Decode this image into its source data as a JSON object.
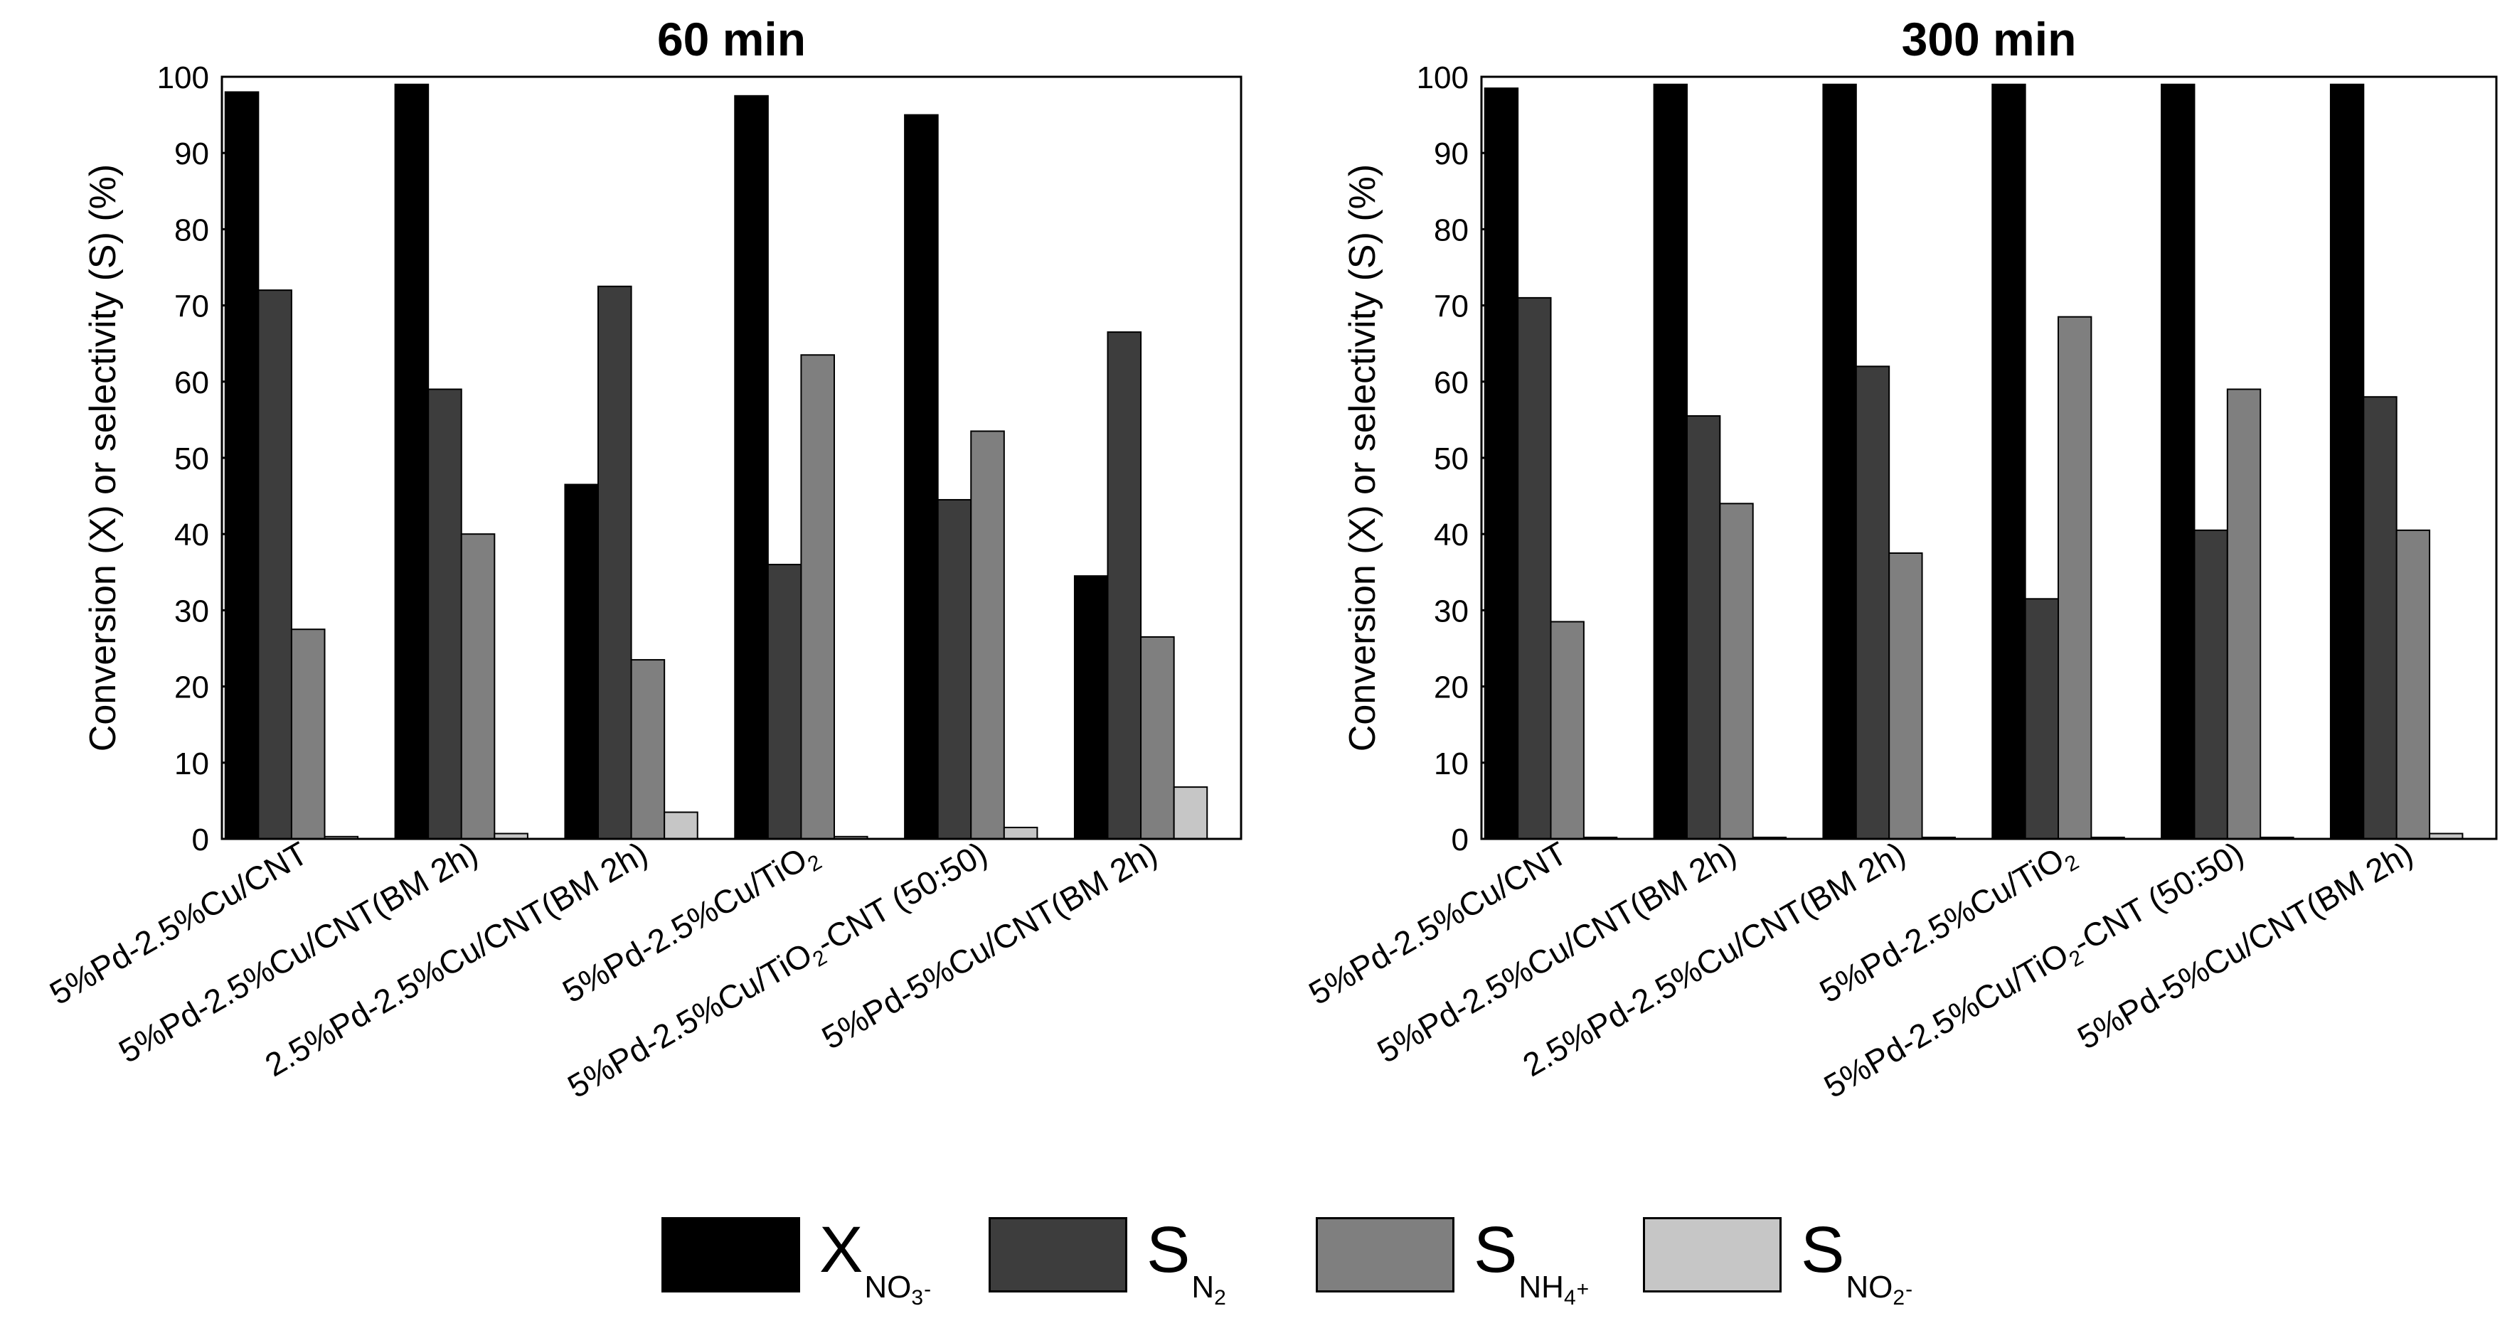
{
  "legend": {
    "items": [
      {
        "main": "X",
        "sub": "NO",
        "sub2": "3",
        "sup": "-",
        "color": "#000000"
      },
      {
        "main": "S",
        "sub": "N",
        "sub2": "2",
        "sup": "",
        "color": "#3d3d3d"
      },
      {
        "main": "S",
        "sub": "NH",
        "sub2": "4",
        "sup": "+",
        "color": "#7f7f7f"
      },
      {
        "main": "S",
        "sub": "NO",
        "sub2": "2",
        "sup": "-",
        "color": "#c6c6c6"
      }
    ]
  },
  "chart_data": [
    {
      "type": "bar",
      "title": "60 min",
      "ylabel": "Conversion (X) or selectivity (S) (%)",
      "ylim": [
        0,
        100
      ],
      "yticks": [
        0,
        10,
        20,
        30,
        40,
        50,
        60,
        70,
        80,
        90,
        100
      ],
      "categories": [
        {
          "pre": "5%Pd-2.5%Cu/CNT",
          "sub": "",
          "post": ""
        },
        {
          "pre": "5%Pd-2.5%Cu/CNT(BM 2h)",
          "sub": "",
          "post": ""
        },
        {
          "pre": "2.5%Pd-2.5%Cu/CNT(BM 2h)",
          "sub": "",
          "post": ""
        },
        {
          "pre": "5%Pd-2.5%Cu/TiO",
          "sub": "2",
          "post": ""
        },
        {
          "pre": "5%Pd-2.5%Cu/TiO",
          "sub": "2",
          "post": "-CNT (50:50)"
        },
        {
          "pre": "5%Pd-5%Cu/CNT(BM 2h)",
          "sub": "",
          "post": ""
        }
      ],
      "series": [
        {
          "name": "X_NO3-",
          "color": "#000000",
          "values": [
            98,
            99,
            46.5,
            97.5,
            95,
            34.5
          ]
        },
        {
          "name": "S_N2",
          "color": "#3d3d3d",
          "values": [
            72,
            59,
            72.5,
            36,
            44.5,
            66.5
          ]
        },
        {
          "name": "S_NH4+",
          "color": "#7f7f7f",
          "values": [
            27.5,
            40,
            23.5,
            63.5,
            53.5,
            26.5
          ]
        },
        {
          "name": "S_NO2-",
          "color": "#c6c6c6",
          "values": [
            0.3,
            0.7,
            3.5,
            0.3,
            1.5,
            6.8
          ]
        }
      ]
    },
    {
      "type": "bar",
      "title": "300 min",
      "ylabel": "Conversion (X) or selectivity (S) (%)",
      "ylim": [
        0,
        100
      ],
      "yticks": [
        0,
        10,
        20,
        30,
        40,
        50,
        60,
        70,
        80,
        90,
        100
      ],
      "categories": [
        {
          "pre": "5%Pd-2.5%Cu/CNT",
          "sub": "",
          "post": ""
        },
        {
          "pre": "5%Pd-2.5%Cu/CNT(BM 2h)",
          "sub": "",
          "post": ""
        },
        {
          "pre": "2.5%Pd-2.5%Cu/CNT(BM 2h)",
          "sub": "",
          "post": ""
        },
        {
          "pre": "5%Pd-2.5%Cu/TiO",
          "sub": "2",
          "post": ""
        },
        {
          "pre": "5%Pd-2.5%Cu/TiO",
          "sub": "2",
          "post": "-CNT (50:50)"
        },
        {
          "pre": "5%Pd-5%Cu/CNT(BM 2h)",
          "sub": "",
          "post": ""
        }
      ],
      "series": [
        {
          "name": "X_NO3-",
          "color": "#000000",
          "values": [
            98.5,
            99,
            99,
            99,
            99,
            99
          ]
        },
        {
          "name": "S_N2",
          "color": "#3d3d3d",
          "values": [
            71,
            55.5,
            62,
            31.5,
            40.5,
            58
          ]
        },
        {
          "name": "S_NH4+",
          "color": "#7f7f7f",
          "values": [
            28.5,
            44,
            37.5,
            68.5,
            59,
            40.5
          ]
        },
        {
          "name": "S_NO2-",
          "color": "#c6c6c6",
          "values": [
            0.2,
            0.2,
            0.2,
            0.2,
            0.2,
            0.7
          ]
        }
      ]
    }
  ]
}
